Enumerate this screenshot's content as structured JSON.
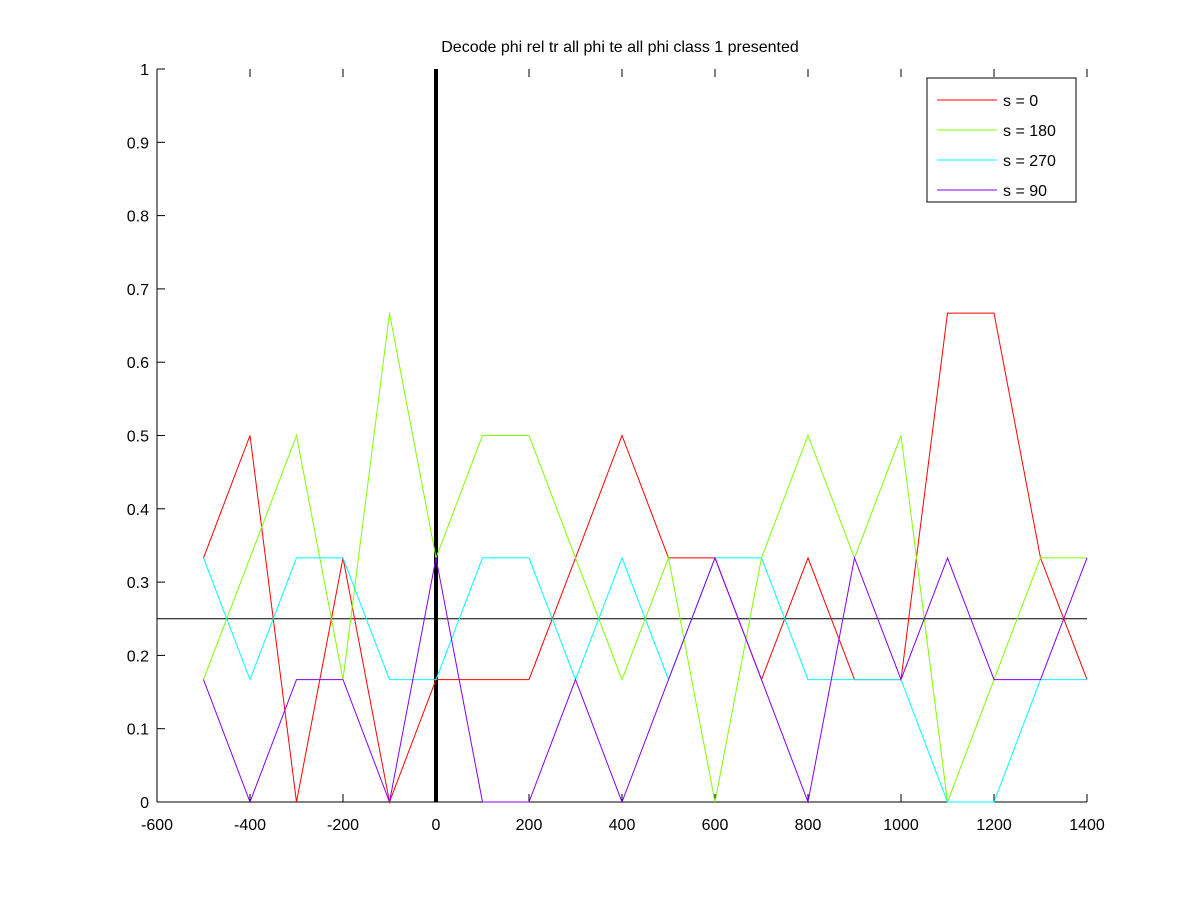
{
  "chart_data": {
    "type": "line",
    "title": "Decode phi rel tr all phi te all phi class 1 presented",
    "xlabel": "",
    "ylabel": "",
    "xlim": [
      -600,
      1400
    ],
    "ylim": [
      0,
      1
    ],
    "xticks": [
      -600,
      -400,
      -200,
      0,
      200,
      400,
      600,
      800,
      1000,
      1200,
      1400
    ],
    "yticks": [
      0,
      0.1,
      0.2,
      0.3,
      0.4,
      0.5,
      0.6,
      0.7,
      0.8,
      0.9,
      1
    ],
    "grid": false,
    "legend_position": "top-right",
    "x": [
      -500,
      -400,
      -300,
      -200,
      -100,
      0,
      100,
      200,
      300,
      400,
      500,
      600,
      700,
      800,
      900,
      1000,
      1100,
      1200,
      1300,
      1400
    ],
    "series": [
      {
        "name": "s = 0",
        "color": "#ff0000",
        "values": [
          0.333,
          0.5,
          0,
          0.333,
          0,
          0.167,
          0.167,
          0.167,
          0.333,
          0.5,
          0.333,
          0.333,
          0.167,
          0.333,
          0.167,
          0.167,
          0.667,
          0.667,
          0.333,
          0.167
        ]
      },
      {
        "name": "s = 180",
        "color": "#80ff00",
        "values": [
          0.167,
          0.333,
          0.5,
          0.167,
          0.667,
          0.333,
          0.5,
          0.5,
          0.333,
          0.167,
          0.333,
          0,
          0.333,
          0.5,
          0.333,
          0.5,
          0,
          0.167,
          0.333,
          0.333
        ]
      },
      {
        "name": "s = 270",
        "color": "#00ffff",
        "values": [
          0.333,
          0.167,
          0.333,
          0.333,
          0.167,
          0.167,
          0.333,
          0.333,
          0.167,
          0.333,
          0.167,
          0.333,
          0.333,
          0.167,
          0.167,
          0.167,
          0,
          0,
          0.167,
          0.167
        ]
      },
      {
        "name": "s = 90",
        "color": "#8000ff",
        "values": [
          0.167,
          0,
          0.167,
          0.167,
          0,
          0.333,
          0,
          0,
          0.167,
          0,
          0.167,
          0.333,
          0.167,
          0,
          0.333,
          0.167,
          0.333,
          0.167,
          0.167,
          0.333
        ]
      }
    ],
    "reference_lines": [
      {
        "orientation": "horizontal",
        "value": 0.25,
        "color": "#000000"
      },
      {
        "orientation": "vertical",
        "value": 0,
        "color": "#000000"
      }
    ]
  }
}
